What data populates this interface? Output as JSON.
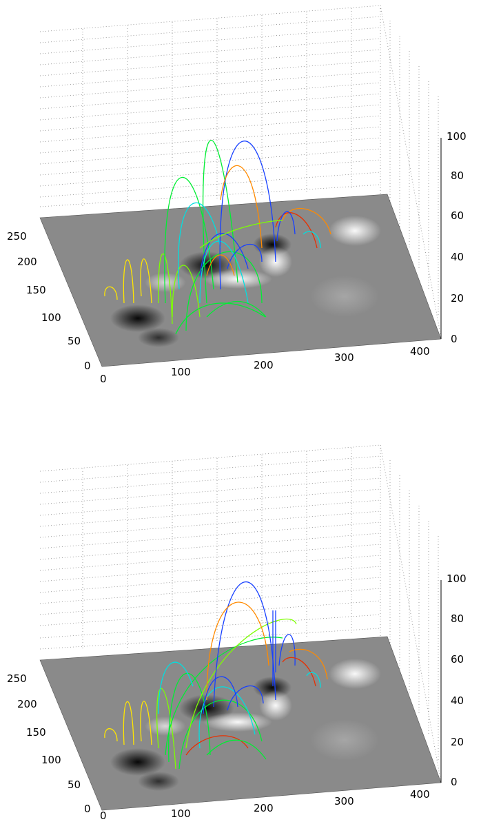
{
  "chart_data": [
    {
      "type": "3d-field-line-plot",
      "x_axis": {
        "ticks": [
          "0",
          "100",
          "200",
          "300",
          "400"
        ],
        "range": [
          0,
          400
        ]
      },
      "y_axis": {
        "ticks": [
          "0",
          "50",
          "100",
          "150",
          "200",
          "250"
        ],
        "range": [
          0,
          250
        ]
      },
      "z_axis": {
        "ticks": [
          "0",
          "20",
          "40",
          "60",
          "80",
          "100"
        ],
        "range": [
          0,
          100
        ]
      },
      "line_colors": [
        "#ffe600",
        "#7dff00",
        "#00ee33",
        "#00e0e0",
        "#1740ff",
        "#ff8a00",
        "#e83000"
      ],
      "background_magnetogram": "grayscale"
    },
    {
      "type": "3d-field-line-plot",
      "x_axis": {
        "ticks": [
          "0",
          "100",
          "200",
          "300",
          "400"
        ],
        "range": [
          0,
          400
        ]
      },
      "y_axis": {
        "ticks": [
          "0",
          "50",
          "100",
          "150",
          "200",
          "250"
        ],
        "range": [
          0,
          250
        ]
      },
      "z_axis": {
        "ticks": [
          "0",
          "20",
          "40",
          "60",
          "80",
          "100"
        ],
        "range": [
          0,
          100
        ]
      },
      "line_colors": [
        "#ffe600",
        "#7dff00",
        "#00ee33",
        "#00e0e0",
        "#1740ff",
        "#ff8a00",
        "#e83000"
      ],
      "background_magnetogram": "grayscale"
    }
  ]
}
